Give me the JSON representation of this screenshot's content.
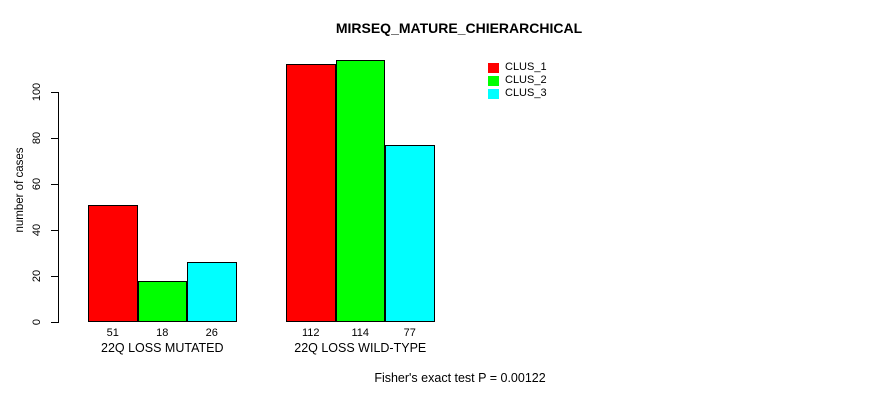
{
  "chart_data": {
    "type": "bar",
    "title": "MIRSEQ_MATURE_CHIERARCHICAL",
    "ylabel": "number of cases",
    "xlabel": "",
    "categories": [
      "22Q LOSS MUTATED",
      "22Q LOSS WILD-TYPE"
    ],
    "series": [
      {
        "name": "CLUS_1",
        "color": "#ff0000",
        "values": [
          51,
          112
        ]
      },
      {
        "name": "CLUS_2",
        "color": "#00ff00",
        "values": [
          18,
          114
        ]
      },
      {
        "name": "CLUS_3",
        "color": "#00ffff",
        "values": [
          26,
          77
        ]
      }
    ],
    "bar_value_labels": [
      [
        "51",
        "18",
        "26"
      ],
      [
        "112",
        "114",
        "77"
      ]
    ],
    "yticks": [
      0,
      20,
      40,
      60,
      80,
      100
    ],
    "ylim": [
      0,
      114
    ],
    "grid": false,
    "legend": {
      "position": "top-right",
      "entries": [
        "CLUS_1",
        "CLUS_2",
        "CLUS_3"
      ]
    },
    "annotation": "Fisher's exact test P = 0.00122"
  }
}
